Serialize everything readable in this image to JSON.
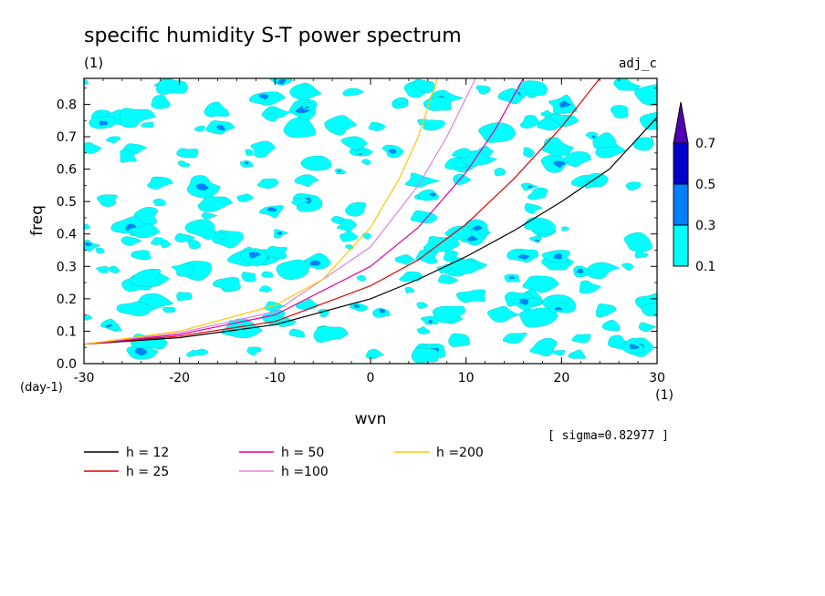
{
  "chart_data": {
    "type": "heatmap",
    "title": "specific humidity S-T power spectrum",
    "subtitle_left": "(1)",
    "subtitle_right": "adj_c",
    "xlabel": "wvn",
    "x_unit": "(1)",
    "ylabel": "freq",
    "y_unit": "(day-1)",
    "xlim": [
      -30,
      30
    ],
    "ylim": [
      0,
      0.88
    ],
    "xticks": [
      "-30",
      "-20",
      "-10",
      "0",
      "10",
      "20",
      "30"
    ],
    "yticks": [
      "0.0",
      "0.1",
      "0.2",
      "0.3",
      "0.4",
      "0.5",
      "0.6",
      "0.7",
      "0.8"
    ],
    "note": "[ sigma=0.82977 ]",
    "colorbar": {
      "levels": [
        "0.1",
        "0.3",
        "0.5",
        "0.7"
      ],
      "colors": [
        "#00ffff",
        "#0080ff",
        "#0000c8",
        "#5000b4"
      ]
    },
    "dispersion_curves": [
      {
        "name": "h = 12",
        "color": "#000000",
        "x": [
          -30,
          -20,
          -10,
          0,
          5,
          10,
          15,
          20,
          25,
          30
        ],
        "y": [
          0.06,
          0.08,
          0.12,
          0.2,
          0.26,
          0.33,
          0.41,
          0.5,
          0.6,
          0.76
        ]
      },
      {
        "name": "h = 25",
        "color": "#e00000",
        "x": [
          -30,
          -20,
          -10,
          0,
          5,
          10,
          15,
          20,
          24
        ],
        "y": [
          0.06,
          0.085,
          0.13,
          0.24,
          0.32,
          0.43,
          0.57,
          0.73,
          0.88
        ]
      },
      {
        "name": "h = 50",
        "color": "#e000a0",
        "x": [
          -30,
          -20,
          -10,
          0,
          5,
          10,
          13,
          16
        ],
        "y": [
          0.06,
          0.09,
          0.15,
          0.3,
          0.42,
          0.59,
          0.72,
          0.88
        ]
      },
      {
        "name": "h =100",
        "color": "#e080e0",
        "x": [
          -30,
          -20,
          -10,
          0,
          5,
          8,
          11
        ],
        "y": [
          0.06,
          0.095,
          0.16,
          0.36,
          0.55,
          0.7,
          0.88
        ]
      },
      {
        "name": "h =200",
        "color": "#ffc800",
        "x": [
          -30,
          -20,
          -10,
          -5,
          0,
          3,
          5,
          7
        ],
        "y": [
          0.06,
          0.1,
          0.18,
          0.26,
          0.42,
          0.57,
          0.7,
          0.88
        ]
      }
    ],
    "grid": false
  }
}
